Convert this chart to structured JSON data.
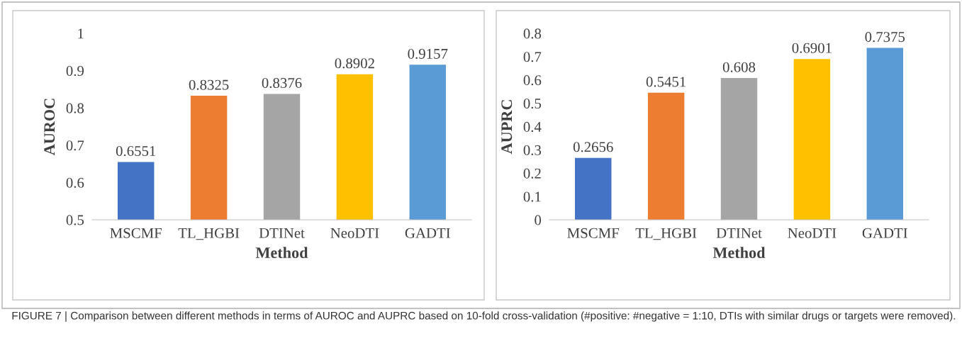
{
  "chart_data": [
    {
      "type": "bar",
      "xlabel": "Method",
      "ylabel": "AUROC",
      "categories": [
        "MSCMF",
        "TL_HGBI",
        "DTINet",
        "NeoDTI",
        "GADTI"
      ],
      "values": [
        0.6551,
        0.8325,
        0.8376,
        0.8902,
        0.9157
      ],
      "colors": [
        "#4472c4",
        "#ed7d31",
        "#a5a5a5",
        "#ffc000",
        "#5b9bd5"
      ],
      "ylim": [
        0.5,
        1
      ],
      "yticks": [
        0.5,
        0.6,
        0.7,
        0.8,
        0.9,
        {
          "value": 1,
          "label": "1"
        }
      ],
      "data_labels": true,
      "grid": false,
      "annotations": [
        "FIGURE 7 | Comparison between different methods in terms of AUROC and AUPRC based on 10-fold cross-validation (#positive: #negative = 1:10, DTIs with similar drugs or targets were removed)."
      ]
    },
    {
      "type": "bar",
      "xlabel": "Method",
      "ylabel": "AUPRC",
      "categories": [
        "MSCMF",
        "TL_HGBI",
        "DTINet",
        "NeoDTI",
        "GADTI"
      ],
      "values": [
        0.2656,
        0.5451,
        0.608,
        0.6901,
        0.7375
      ],
      "colors": [
        "#4472c4",
        "#ed7d31",
        "#a5a5a5",
        "#ffc000",
        "#5b9bd5"
      ],
      "ylim": [
        0,
        0.8
      ],
      "yticks": [
        0,
        0.1,
        0.2,
        0.3,
        0.4,
        0.5,
        0.6,
        0.7,
        0.8
      ],
      "data_labels": true,
      "grid": false
    }
  ]
}
